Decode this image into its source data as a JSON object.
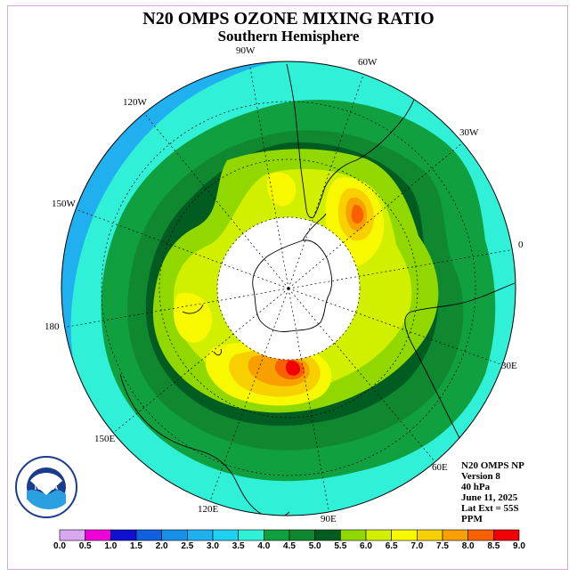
{
  "title": "N20 OMPS OZONE MIXING RATIO",
  "subtitle": "Southern Hemisphere",
  "logo": {
    "text": "NOAA",
    "ring_text": "NATIONAL OCEANIC AND ATMOSPHERIC ADMINISTRATION · U.S. DEPARTMENT OF COMMERCE"
  },
  "info": {
    "product": "N20 OMPS NP",
    "version": "Version 8",
    "pressure": "40 hPa",
    "date": "June 11, 2025",
    "lat_ext": "Lat Ext = 55S",
    "units": "PPM"
  },
  "longitude_labels": [
    "90W",
    "60W",
    "30W",
    "0",
    "30E",
    "60E",
    "90E",
    "120E",
    "150E",
    "180",
    "150W",
    "120W"
  ],
  "colorbar": {
    "ticks": [
      "0.0",
      "0.5",
      "1.0",
      "1.5",
      "2.0",
      "2.5",
      "3.0",
      "3.5",
      "4.0",
      "4.5",
      "5.0",
      "5.5",
      "6.0",
      "6.5",
      "7.0",
      "7.5",
      "8.0",
      "8.5",
      "9.0"
    ],
    "colors": [
      "#b070e8",
      "#d8a8f0",
      "#f000d8",
      "#1010d0",
      "#1060e0",
      "#1890e8",
      "#20b0f0",
      "#20d0f0",
      "#30f0d8",
      "#10a040",
      "#108830",
      "#005c20",
      "#90d800",
      "#d0f000",
      "#f8f800",
      "#f8d000",
      "#f8a000",
      "#f86000",
      "#f00000",
      "#805838"
    ]
  },
  "map": {
    "lat_extent": "55S",
    "contours": [
      {
        "level": "3.0-3.5",
        "color": "#20b0f0"
      },
      {
        "level": "3.5-4.0",
        "color": "#30f0d8"
      },
      {
        "level": "4.0-4.5",
        "color": "#10a040"
      },
      {
        "level": "4.5-5.0",
        "color": "#108830"
      },
      {
        "level": "5.0-5.5",
        "color": "#005c20"
      },
      {
        "level": "5.5-6.0",
        "color": "#90d800"
      },
      {
        "level": "6.0-6.5",
        "color": "#d0f000"
      },
      {
        "level": "6.5-7.0",
        "color": "#f8f800"
      },
      {
        "level": "7.0-7.5",
        "color": "#f8d000"
      },
      {
        "level": "7.5-8.0",
        "color": "#f8a000"
      },
      {
        "level": "8.0-8.5",
        "color": "#f86000"
      },
      {
        "level": "8.5-9.0",
        "color": "#f00000"
      }
    ]
  }
}
